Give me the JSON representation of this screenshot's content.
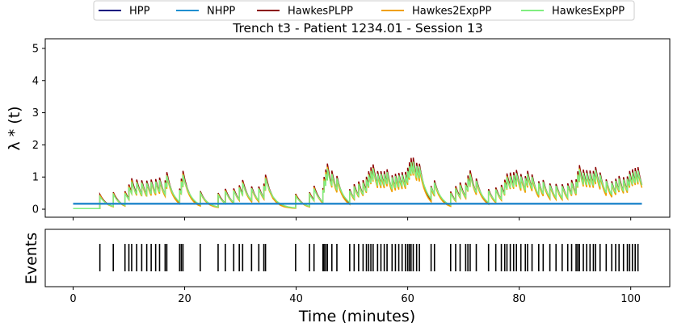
{
  "chart_data": [
    {
      "type": "line",
      "title": "Trench t3 - Patient 1234.01 - Session 13",
      "xlabel": "",
      "ylabel": "λ * (t)",
      "xlim": [
        -5,
        107
      ],
      "ylim": [
        -0.25,
        5.3
      ],
      "yticks": [
        0,
        1,
        2,
        3,
        4,
        5
      ],
      "xticks": [
        0,
        20,
        40,
        60,
        80,
        100
      ],
      "legend_position": "top-center, outside",
      "series": [
        {
          "name": "HPP",
          "color": "#00007f",
          "baseline": 0.17
        },
        {
          "name": "NHPP",
          "color": "#1f8fd0",
          "baseline": 0.17
        },
        {
          "name": "HawkesPLPP",
          "color": "#8b0000",
          "baseline": 0.02,
          "scale": 1.05,
          "decay": 0.8
        },
        {
          "name": "Hawkes2ExpPP",
          "color": "#f0a000",
          "baseline": 0.02,
          "scale": 1.0,
          "decay": 0.85
        },
        {
          "name": "HawkesExpPP",
          "color": "#80ee80",
          "baseline": 0.02,
          "scale": 0.88,
          "decay": 0.7
        }
      ],
      "events": [
        4.8,
        7.2,
        9.3,
        10.0,
        10.5,
        11.4,
        12.3,
        13.2,
        14.0,
        14.8,
        15.5,
        16.5,
        16.8,
        19.1,
        19.4,
        19.7,
        22.8,
        26.0,
        27.3,
        28.8,
        29.8,
        30.4,
        32.0,
        33.3,
        34.2,
        34.5,
        39.9,
        42.4,
        43.2,
        44.8,
        45.0,
        45.3,
        45.6,
        46.4,
        47.3,
        49.6,
        50.4,
        51.2,
        52.0,
        52.6,
        53.0,
        53.4,
        53.8,
        54.6,
        55.2,
        55.8,
        56.3,
        57.2,
        57.8,
        58.4,
        59.0,
        59.6,
        60.0,
        60.3,
        60.6,
        61.0,
        61.6,
        62.1,
        64.2,
        64.8,
        67.7,
        68.6,
        69.4,
        70.4,
        70.8,
        71.2,
        72.3,
        74.5,
        75.8,
        76.8,
        77.4,
        77.8,
        78.4,
        79.0,
        79.5,
        80.3,
        81.1,
        81.5,
        82.3,
        83.5,
        84.3,
        85.5,
        86.6,
        87.7,
        88.7,
        89.4,
        90.2,
        90.5,
        90.8,
        91.5,
        92.1,
        92.7,
        93.3,
        93.7,
        94.5,
        95.6,
        96.6,
        97.3,
        97.9,
        98.7,
        99.4,
        99.8,
        100.3,
        100.8,
        101.3
      ]
    },
    {
      "type": "event_raster",
      "ylabel": "Events",
      "xlabel": "Time (minutes)",
      "xlim": [
        -5,
        107
      ],
      "xticks": [
        0,
        20,
        40,
        60,
        80,
        100
      ]
    }
  ]
}
